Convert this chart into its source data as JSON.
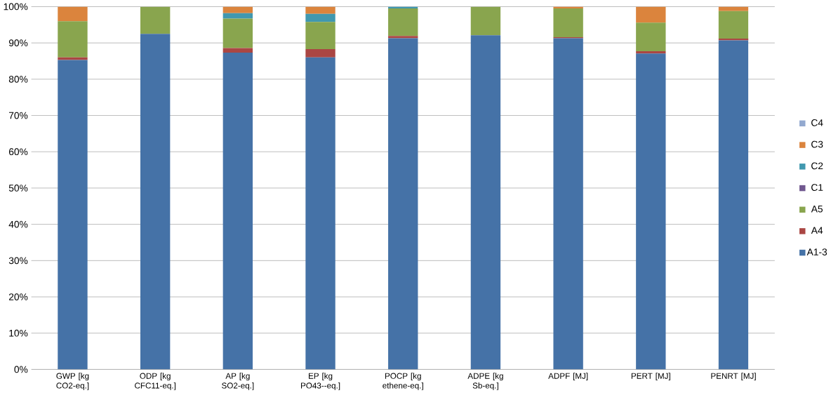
{
  "chart_data": {
    "type": "bar",
    "stacked": true,
    "grid": "y",
    "legend": "right",
    "categories": [
      "GWP [kg CO2-eq.]",
      "ODP [kg CFC11-eq.]",
      "AP [kg SO2-eq.]",
      "EP [kg PO43--eq.]",
      "POCP [kg ethene-eq.]",
      "ADPE [kg Sb-eq.]",
      "ADPF [MJ]",
      "PERT [MJ]",
      "PENRT [MJ]"
    ],
    "ylim": [
      0,
      100
    ],
    "yticks": [
      {
        "value": 0,
        "label": "0%"
      },
      {
        "value": 10,
        "label": "10%"
      },
      {
        "value": 20,
        "label": "20%"
      },
      {
        "value": 30,
        "label": "30%"
      },
      {
        "value": 40,
        "label": "40%"
      },
      {
        "value": 50,
        "label": "50%"
      },
      {
        "value": 60,
        "label": "60%"
      },
      {
        "value": 70,
        "label": "70%"
      },
      {
        "value": 80,
        "label": "80%"
      },
      {
        "value": 90,
        "label": "90%"
      },
      {
        "value": 100,
        "label": "100%"
      }
    ],
    "series": [
      {
        "name": "A1-3",
        "color": "#4572a7",
        "values": [
          85.3,
          92.5,
          87.3,
          86,
          91.3,
          92.1,
          91.3,
          87.1,
          90.7
        ]
      },
      {
        "name": "A4",
        "color": "#aa4643",
        "values": [
          0.7,
          0,
          1.3,
          2.3,
          0.6,
          0,
          0.3,
          0.6,
          0.5
        ]
      },
      {
        "name": "A5",
        "color": "#89a54e",
        "values": [
          10,
          7.5,
          8.1,
          7.5,
          7.6,
          7.9,
          7.9,
          7.9,
          7.6
        ]
      },
      {
        "name": "C1",
        "color": "#71588f",
        "values": [
          0,
          0,
          0,
          0,
          0,
          0,
          0,
          0,
          0
        ]
      },
      {
        "name": "C2",
        "color": "#4198af",
        "values": [
          0,
          0,
          1.5,
          2.2,
          0.5,
          0,
          0,
          0,
          0
        ]
      },
      {
        "name": "C3",
        "color": "#db843d",
        "values": [
          4,
          0,
          1.8,
          2,
          0,
          0,
          0.5,
          4.4,
          1.2
        ]
      },
      {
        "name": "C4",
        "color": "#93a9cf",
        "values": [
          0,
          0,
          0,
          0,
          0,
          0,
          0,
          0,
          0
        ]
      }
    ]
  }
}
